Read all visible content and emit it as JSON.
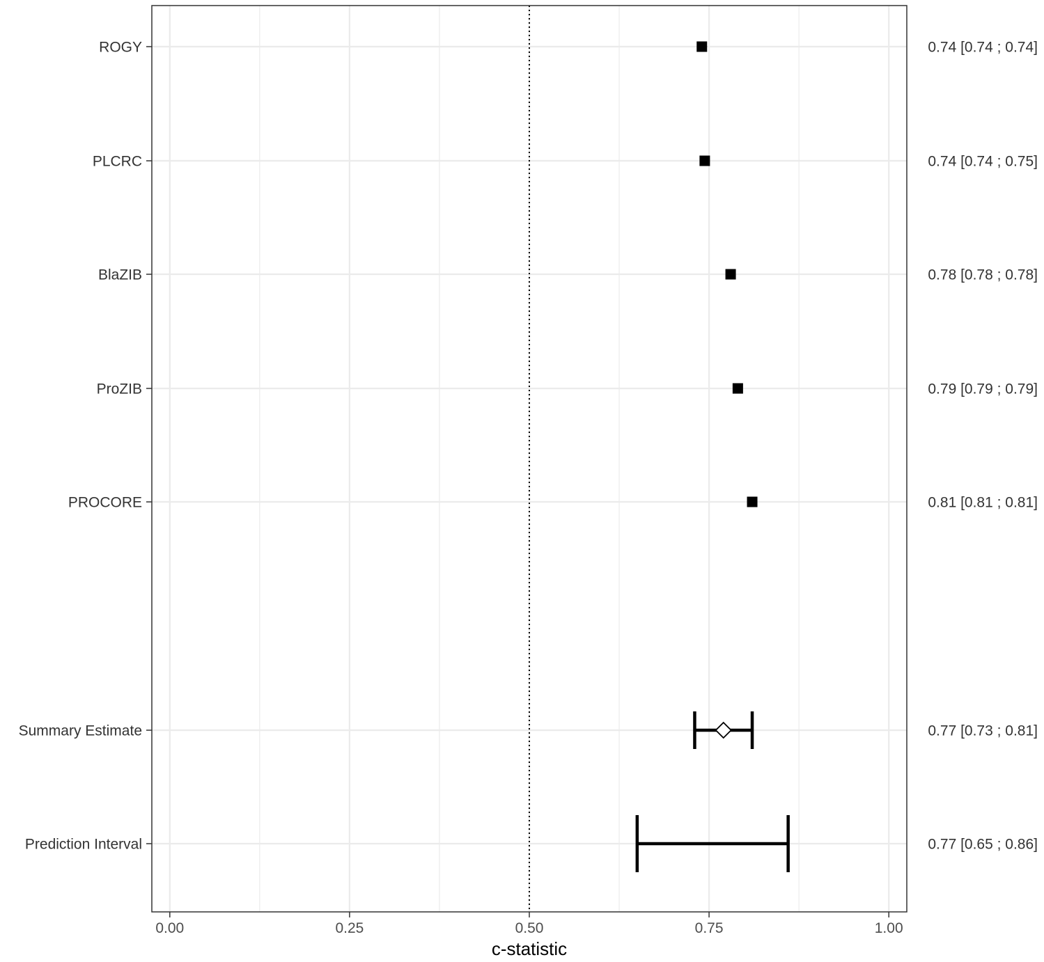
{
  "chart_data": {
    "type": "forest",
    "xlabel": "c-statistic",
    "xlim": [
      -0.025,
      1.025
    ],
    "x_ticks": [
      0.0,
      0.25,
      0.5,
      0.75,
      1.0
    ],
    "x_tick_labels": [
      "0.00",
      "0.25",
      "0.50",
      "0.75",
      "1.00"
    ],
    "reference_line": 0.5,
    "grid": true,
    "rows": [
      {
        "label": "ROGY",
        "estimate": 0.74,
        "lower": 0.74,
        "upper": 0.74,
        "ci_text": "0.74 [0.74 ; 0.74]",
        "marker": "square"
      },
      {
        "label": "PLCRC",
        "estimate": 0.744,
        "lower": 0.74,
        "upper": 0.75,
        "ci_text": "0.74 [0.74 ; 0.75]",
        "marker": "square"
      },
      {
        "label": "BlaZIB",
        "estimate": 0.78,
        "lower": 0.78,
        "upper": 0.78,
        "ci_text": "0.78 [0.78 ; 0.78]",
        "marker": "square"
      },
      {
        "label": "ProZIB",
        "estimate": 0.79,
        "lower": 0.79,
        "upper": 0.79,
        "ci_text": "0.79 [0.79 ; 0.79]",
        "marker": "square"
      },
      {
        "label": "PROCORE",
        "estimate": 0.81,
        "lower": 0.81,
        "upper": 0.81,
        "ci_text": "0.81 [0.81 ; 0.81]",
        "marker": "square"
      },
      {
        "label": "Summary Estimate",
        "estimate": 0.77,
        "lower": 0.73,
        "upper": 0.81,
        "ci_text": "0.77 [0.73 ; 0.81]",
        "marker": "diamond"
      },
      {
        "label": "Prediction Interval",
        "estimate": 0.77,
        "lower": 0.65,
        "upper": 0.86,
        "ci_text": "0.77 [0.65 ; 0.86]",
        "marker": "none"
      }
    ],
    "colors": {
      "marker": "#000000",
      "grid": "#ebebeb",
      "panel_border": "#333333"
    }
  }
}
